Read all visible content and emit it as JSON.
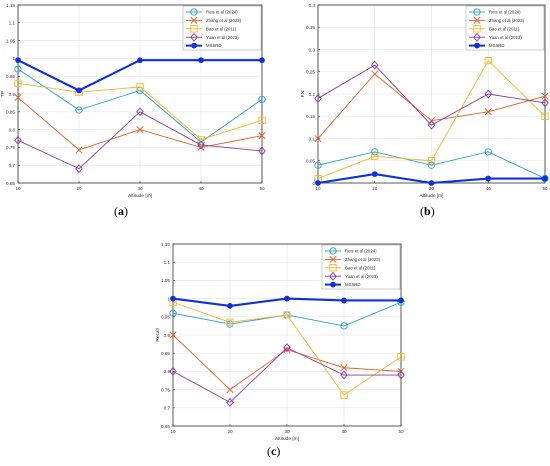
{
  "panel_labels": [
    "a",
    "b",
    "c"
  ],
  "legend_series": [
    "Reis et al (2024)",
    "Zhang et al (2023)",
    "Bao et al (2011)",
    "Yuan et al (2023)",
    "MSSRD"
  ],
  "colors": {
    "reis": "#2a9fd6",
    "zhang": "#e2602a",
    "bao": "#f5b82e",
    "yuan": "#8a3fa6",
    "mssrd": "#1030d8"
  },
  "chart_data": [
    {
      "type": "line",
      "title": "",
      "xlabel": "Altitude [m]",
      "ylabel": "TP",
      "x": [
        10,
        20,
        30,
        40,
        50
      ],
      "xticks": [
        "10",
        "20",
        "30",
        "40",
        "50"
      ],
      "xlim": [
        10,
        50
      ],
      "ylim": [
        0.65,
        1.15
      ],
      "yticks": [
        "0.65",
        "0.7",
        "0.75",
        "0.8",
        "0.85",
        "0.9",
        "0.95",
        "1",
        "1.05",
        "1.1",
        "1.15"
      ],
      "grid": true,
      "legend": "top-right",
      "series": [
        {
          "name": "Reis et al (2024)",
          "color_key": "reis",
          "marker": "circle",
          "values": [
            0.97,
            0.855,
            0.91,
            0.765,
            0.885
          ]
        },
        {
          "name": "Zhang et al (2023)",
          "color_key": "zhang",
          "marker": "x",
          "values": [
            0.89,
            0.743,
            0.8,
            0.75,
            0.783
          ]
        },
        {
          "name": "Bao et al (2011)",
          "color_key": "bao",
          "marker": "square",
          "values": [
            0.93,
            0.905,
            0.92,
            0.772,
            0.826
          ]
        },
        {
          "name": "Yuan et al (2023)",
          "color_key": "yuan",
          "marker": "diamond",
          "values": [
            0.77,
            0.69,
            0.85,
            0.757,
            0.74
          ]
        },
        {
          "name": "MSSRD",
          "color_key": "mssrd",
          "marker": "dot",
          "values": [
            0.995,
            0.91,
            0.995,
            0.995,
            0.995
          ]
        }
      ]
    },
    {
      "type": "line",
      "title": "",
      "xlabel": "Altitude [m]",
      "ylabel": "FN",
      "x": [
        10,
        20,
        30,
        40,
        50
      ],
      "xticks": [
        "10",
        "20",
        "30",
        "40",
        "50"
      ],
      "xlim": [
        10,
        50
      ],
      "ylim": [
        0,
        0.4
      ],
      "yticks": [
        "0",
        "0.05",
        "0.1",
        "0.15",
        "0.2",
        "0.25",
        "0.3",
        "0.35",
        "0.4"
      ],
      "grid": true,
      "legend": "top-right",
      "series": [
        {
          "name": "Reis et al (2024)",
          "color_key": "reis",
          "marker": "circle",
          "values": [
            0.04,
            0.07,
            0.04,
            0.07,
            0.01
          ]
        },
        {
          "name": "Zhang et al (2023)",
          "color_key": "zhang",
          "marker": "x",
          "values": [
            0.1,
            0.245,
            0.14,
            0.16,
            0.195
          ]
        },
        {
          "name": "Bao et al (2011)",
          "color_key": "bao",
          "marker": "square",
          "values": [
            0.01,
            0.06,
            0.05,
            0.275,
            0.15
          ]
        },
        {
          "name": "Yuan et al (2023)",
          "color_key": "yuan",
          "marker": "diamond",
          "values": [
            0.19,
            0.265,
            0.13,
            0.2,
            0.18
          ]
        },
        {
          "name": "MSSRD",
          "color_key": "mssrd",
          "marker": "dot",
          "values": [
            0.0,
            0.02,
            0.0,
            0.01,
            0.01
          ]
        }
      ]
    },
    {
      "type": "line",
      "title": "",
      "xlabel": "Altitude [m]",
      "ylabel": "Recall",
      "x": [
        10,
        20,
        30,
        40,
        50
      ],
      "xticks": [
        "10",
        "20",
        "30",
        "40",
        "50"
      ],
      "xlim": [
        10,
        50
      ],
      "ylim": [
        0.65,
        1.15
      ],
      "yticks": [
        "0.65",
        "0.7",
        "0.75",
        "0.8",
        "0.85",
        "0.9",
        "0.95",
        "1",
        "1.05",
        "1.1",
        "1.15"
      ],
      "grid": true,
      "legend": "top-right",
      "series": [
        {
          "name": "Reis et al (2024)",
          "color_key": "reis",
          "marker": "circle",
          "values": [
            0.96,
            0.93,
            0.955,
            0.925,
            0.99
          ]
        },
        {
          "name": "Zhang et al (2023)",
          "color_key": "zhang",
          "marker": "x",
          "values": [
            0.9,
            0.75,
            0.86,
            0.81,
            0.8
          ]
        },
        {
          "name": "Bao et al (2011)",
          "color_key": "bao",
          "marker": "square",
          "values": [
            0.99,
            0.935,
            0.955,
            0.735,
            0.84
          ]
        },
        {
          "name": "Yuan et al (2023)",
          "color_key": "yuan",
          "marker": "diamond",
          "values": [
            0.8,
            0.715,
            0.865,
            0.79,
            0.79
          ]
        },
        {
          "name": "MSSRD",
          "color_key": "mssrd",
          "marker": "dot",
          "values": [
            1.0,
            0.98,
            1.0,
            0.995,
            0.995
          ]
        }
      ]
    }
  ]
}
